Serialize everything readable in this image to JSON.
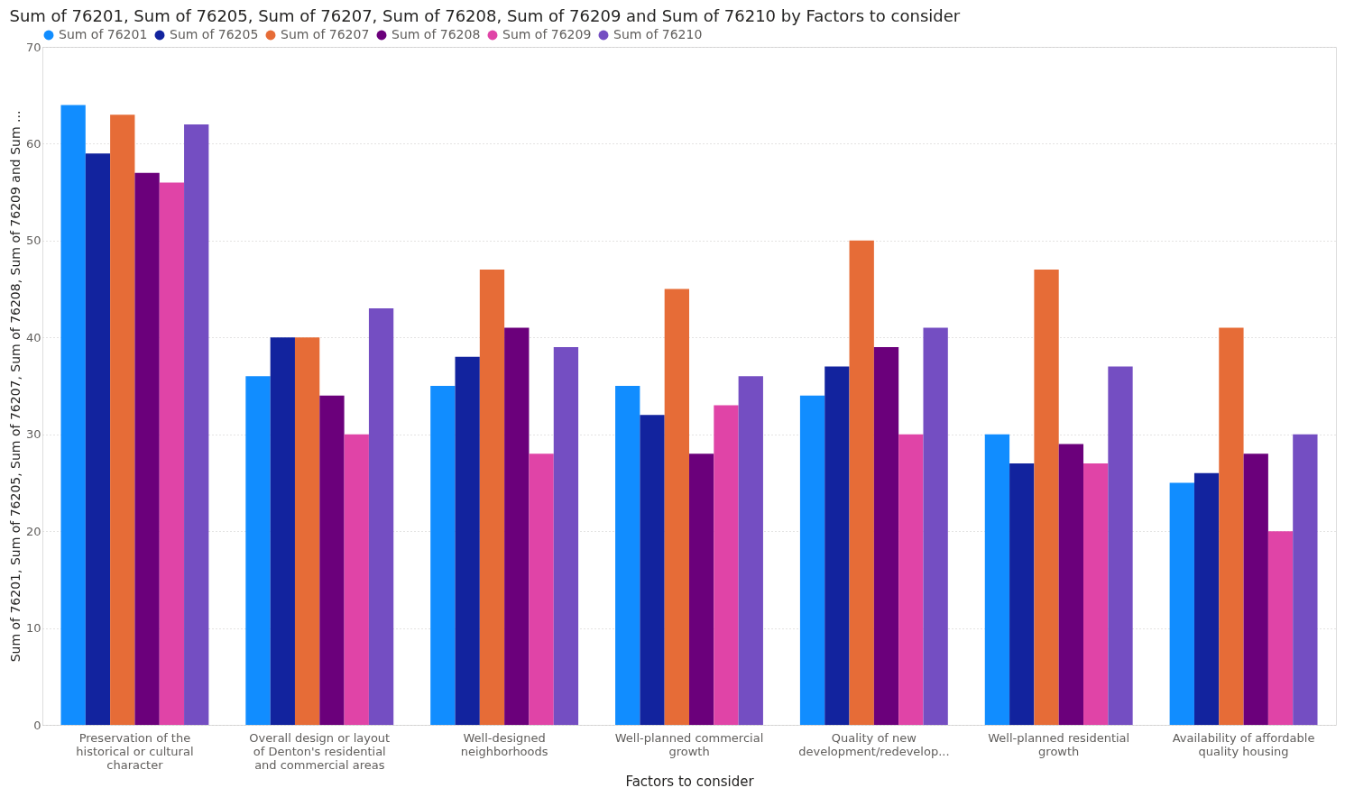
{
  "chart_data": {
    "type": "bar",
    "title": "Sum of 76201, Sum of 76205, Sum of 76207, Sum of 76208, Sum of 76209 and Sum of 76210 by Factors to consider",
    "xlabel": "Factors to consider",
    "ylabel": "Sum of 76201, Sum of 76205, Sum of 76207, Sum of 76208, Sum of 76209 and Sum ...",
    "categories": [
      "Preservation of the historical or cultural character",
      "Overall design or layout of Denton's residential and commercial areas",
      "Well-designed neighborhoods",
      "Well-planned commercial growth",
      "Quality of new development/redevelop...",
      "Well-planned residential growth",
      "Availability of affordable quality housing"
    ],
    "series": [
      {
        "name": "Sum of 76201",
        "color": "#118dff",
        "values": [
          64,
          36,
          35,
          35,
          34,
          30,
          25
        ]
      },
      {
        "name": "Sum of 76205",
        "color": "#12239e",
        "values": [
          59,
          40,
          38,
          32,
          37,
          27,
          26
        ]
      },
      {
        "name": "Sum of 76207",
        "color": "#e66c37",
        "values": [
          63,
          40,
          47,
          45,
          50,
          47,
          41
        ]
      },
      {
        "name": "Sum of 76208",
        "color": "#6b007b",
        "values": [
          57,
          34,
          41,
          28,
          39,
          29,
          28
        ]
      },
      {
        "name": "Sum of 76209",
        "color": "#e044a7",
        "values": [
          56,
          30,
          28,
          33,
          30,
          27,
          20
        ]
      },
      {
        "name": "Sum of 76210",
        "color": "#744ec2",
        "values": [
          62,
          43,
          39,
          36,
          41,
          37,
          30
        ]
      }
    ],
    "ylim": [
      0,
      70
    ],
    "yticks": [
      0,
      10,
      20,
      30,
      40,
      50,
      60,
      70
    ],
    "grid": "y",
    "legend": "top left"
  }
}
